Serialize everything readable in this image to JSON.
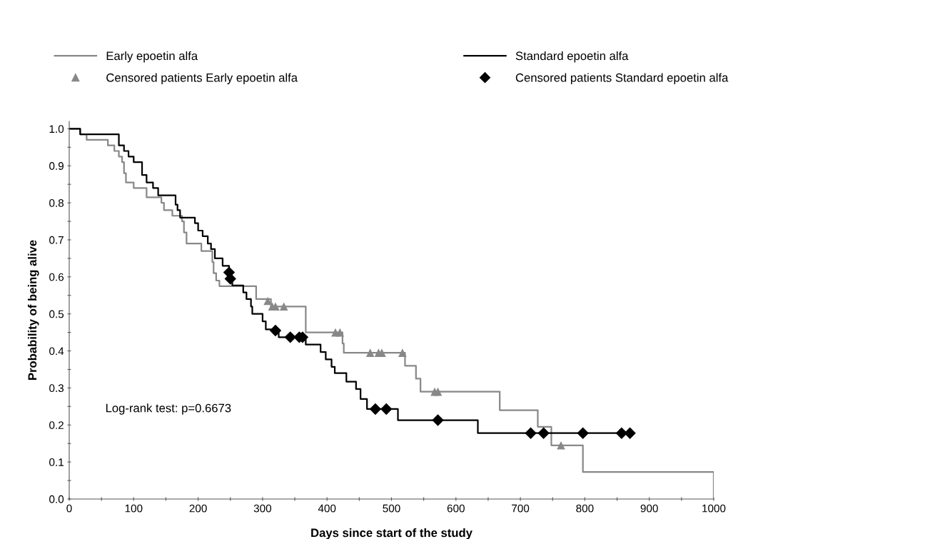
{
  "chart_data": {
    "type": "step",
    "xlabel": "Days since start of the study",
    "ylabel": "Probability of being alive",
    "xlim": [
      0,
      1000
    ],
    "ylim": [
      0,
      1.02
    ],
    "xticks": [
      0,
      {
        "value": 50,
        "label": null
      },
      100,
      {
        "value": 150,
        "label": null
      },
      200,
      {
        "value": 250,
        "label": null
      },
      300,
      {
        "value": 350,
        "label": null
      },
      400,
      {
        "value": 450,
        "label": null
      },
      500,
      {
        "value": 550,
        "label": null
      },
      600,
      {
        "value": 650,
        "label": null
      },
      700,
      {
        "value": 750,
        "label": null
      },
      800,
      {
        "value": 850,
        "label": null
      },
      900,
      {
        "value": 950,
        "label": null
      },
      1000
    ],
    "yticks": [
      {
        "value": 0,
        "label": "0.0"
      },
      {
        "value": 0.05,
        "label": null
      },
      {
        "value": 0.1,
        "label": "0.1"
      },
      {
        "value": 0.15,
        "label": null
      },
      {
        "value": 0.2,
        "label": "0.2"
      },
      {
        "value": 0.25,
        "label": null
      },
      {
        "value": 0.3,
        "label": "0.3"
      },
      {
        "value": 0.35,
        "label": null
      },
      {
        "value": 0.4,
        "label": "0.4"
      },
      {
        "value": 0.45,
        "label": null
      },
      {
        "value": 0.5,
        "label": "0.5"
      },
      {
        "value": 0.55,
        "label": null
      },
      {
        "value": 0.6,
        "label": "0.6"
      },
      {
        "value": 0.65,
        "label": null
      },
      {
        "value": 0.7,
        "label": "0.7"
      },
      {
        "value": 0.75,
        "label": null
      },
      {
        "value": 0.8,
        "label": "0.8"
      },
      {
        "value": 0.85,
        "label": null
      },
      {
        "value": 0.9,
        "label": "0.9"
      },
      {
        "value": 0.95,
        "label": null
      },
      {
        "value": 1.0,
        "label": "1.0"
      }
    ],
    "grid": false,
    "legend": "top",
    "annotations": [
      "Log-rank test: p=0.6673"
    ],
    "series": [
      {
        "name": "Early epoetin alfa",
        "color": "#888888",
        "marker": "none",
        "x": [
          0,
          17,
          27,
          60,
          70,
          77,
          82,
          85,
          88,
          100,
          120,
          143,
          147,
          160,
          175,
          178,
          182,
          205,
          222,
          224,
          228,
          233,
          290,
          313,
          367,
          424,
          426,
          521,
          538,
          545,
          668,
          727,
          748,
          797,
          1000
        ],
        "values": [
          1.0,
          0.985,
          0.97,
          0.955,
          0.94,
          0.925,
          0.91,
          0.88,
          0.855,
          0.84,
          0.815,
          0.8,
          0.78,
          0.765,
          0.75,
          0.72,
          0.69,
          0.67,
          0.64,
          0.61,
          0.59,
          0.575,
          0.54,
          0.52,
          0.45,
          0.42,
          0.395,
          0.36,
          0.325,
          0.29,
          0.24,
          0.195,
          0.145,
          0.073,
          0.0
        ]
      },
      {
        "name": "Standard epoetin alfa",
        "color": "#000000",
        "marker": "none",
        "x": [
          0,
          17,
          77,
          85,
          92,
          100,
          113,
          120,
          130,
          138,
          165,
          168,
          172,
          195,
          200,
          207,
          215,
          220,
          226,
          238,
          248,
          253,
          270,
          275,
          282,
          284,
          300,
          305,
          325,
          367,
          390,
          398,
          407,
          412,
          430,
          445,
          452,
          462,
          510,
          634,
          870
        ],
        "values": [
          1.0,
          0.985,
          0.955,
          0.94,
          0.925,
          0.91,
          0.875,
          0.855,
          0.84,
          0.82,
          0.795,
          0.78,
          0.76,
          0.745,
          0.725,
          0.71,
          0.69,
          0.675,
          0.65,
          0.63,
          0.595,
          0.577,
          0.558,
          0.54,
          0.52,
          0.5,
          0.48,
          0.458,
          0.437,
          0.417,
          0.397,
          0.377,
          0.357,
          0.34,
          0.317,
          0.297,
          0.27,
          0.243,
          0.213,
          0.178,
          0.178
        ]
      },
      {
        "name": "Censored patients Early epoetin alfa",
        "type": "scatter",
        "color": "#888888",
        "marker": "triangle",
        "x": [
          308,
          315,
          320,
          333,
          413,
          420,
          467,
          480,
          485,
          517,
          567,
          572,
          763
        ],
        "values": [
          0.535,
          0.52,
          0.52,
          0.52,
          0.45,
          0.45,
          0.395,
          0.395,
          0.395,
          0.395,
          0.29,
          0.29,
          0.145
        ]
      },
      {
        "name": "Censored patients Standard epoetin alfa",
        "type": "scatter",
        "color": "#000000",
        "marker": "diamond",
        "x": [
          248,
          250,
          320,
          343,
          357,
          362,
          475,
          492,
          572,
          716,
          736,
          797,
          857,
          870
        ],
        "values": [
          0.612,
          0.595,
          0.455,
          0.437,
          0.437,
          0.437,
          0.243,
          0.243,
          0.213,
          0.178,
          0.178,
          0.178,
          0.178,
          0.178
        ]
      }
    ]
  }
}
